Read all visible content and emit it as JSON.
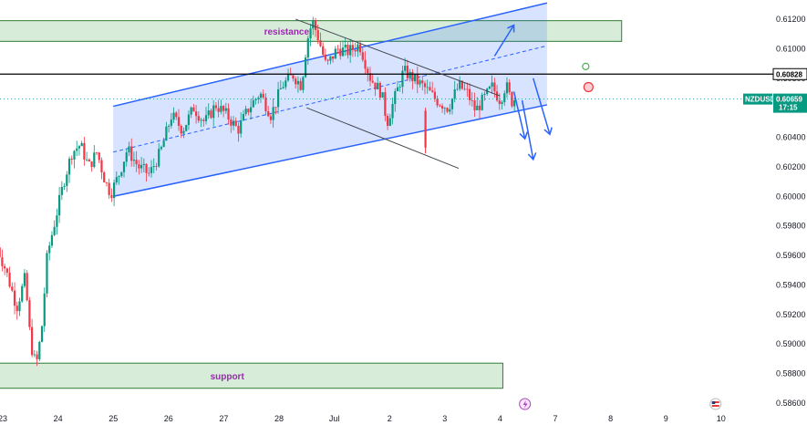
{
  "chart_data": {
    "type": "candlestick",
    "symbol": "NZDUSD",
    "last_price": "0.60659",
    "countdown": "17:15",
    "horizontal_line_price": "0.60828",
    "y_ticks": [
      "0.61200",
      "0.61000",
      "0.60800",
      "0.60600",
      "0.60400",
      "0.60200",
      "0.60000",
      "0.59800",
      "0.59600",
      "0.59400",
      "0.59200",
      "0.59000",
      "0.58800",
      "0.58600"
    ],
    "ylim": [
      0.5855,
      0.6133
    ],
    "x_ticks": [
      "23",
      "24",
      "25",
      "26",
      "27",
      "28",
      "Jul",
      "2",
      "3",
      "4",
      "7",
      "8",
      "9",
      "10"
    ],
    "x_tick_positions": [
      0,
      1,
      2,
      3,
      4,
      5,
      6,
      7,
      8,
      9,
      10,
      11,
      12,
      13
    ],
    "zones": [
      {
        "label": "resistance",
        "low": 0.6105,
        "high": 0.6119,
        "x_start": -0.1,
        "x_end": 11.2
      },
      {
        "label": "support",
        "low": 0.587,
        "high": 0.5887,
        "x_start": -0.1,
        "x_end": 9.05
      }
    ],
    "channel": {
      "lower": [
        [
          2.0,
          0.6
        ],
        [
          9.85,
          0.6062
        ]
      ],
      "upper": [
        [
          2.0,
          0.6061
        ],
        [
          9.85,
          0.6131
        ]
      ],
      "mid": [
        [
          2.0,
          0.603
        ],
        [
          9.85,
          0.6102
        ]
      ]
    },
    "trend_lines": [
      {
        "from": [
          5.3,
          0.612
        ],
        "to": [
          9.0,
          0.6068
        ]
      },
      {
        "from": [
          5.5,
          0.606
        ],
        "to": [
          8.25,
          0.6019
        ]
      }
    ],
    "projections": [
      {
        "from": [
          8.9,
          0.6095
        ],
        "to": [
          9.25,
          0.6116
        ]
      },
      {
        "from": [
          9.25,
          0.6071
        ],
        "to": [
          9.45,
          0.6039
        ]
      },
      {
        "from": [
          9.6,
          0.608
        ],
        "to": [
          9.9,
          0.6042
        ]
      },
      {
        "from": [
          9.4,
          0.6065
        ],
        "to": [
          9.6,
          0.6025
        ]
      }
    ],
    "markers": [
      {
        "type": "circle-green",
        "x": 10.55,
        "y": 0.6088
      },
      {
        "type": "circle-red",
        "x": 10.6,
        "y": 0.6074
      }
    ],
    "price_path": [
      [
        -0.1,
        0.597
      ],
      [
        0.1,
        0.595
      ],
      [
        0.3,
        0.5925
      ],
      [
        0.45,
        0.5945
      ],
      [
        0.55,
        0.59
      ],
      [
        0.65,
        0.5885
      ],
      [
        0.75,
        0.591
      ],
      [
        0.85,
        0.596
      ],
      [
        1.0,
        0.5985
      ],
      [
        1.15,
        0.601
      ],
      [
        1.3,
        0.603
      ],
      [
        1.45,
        0.6035
      ],
      [
        1.6,
        0.602
      ],
      [
        1.75,
        0.603
      ],
      [
        1.9,
        0.601
      ],
      [
        2.0,
        0.6002
      ],
      [
        2.15,
        0.6015
      ],
      [
        2.3,
        0.6032
      ],
      [
        2.5,
        0.602
      ],
      [
        2.7,
        0.6015
      ],
      [
        2.9,
        0.603
      ],
      [
        3.1,
        0.6055
      ],
      [
        3.3,
        0.6045
      ],
      [
        3.5,
        0.606
      ],
      [
        3.7,
        0.605
      ],
      [
        3.9,
        0.6062
      ],
      [
        4.1,
        0.6055
      ],
      [
        4.3,
        0.6045
      ],
      [
        4.5,
        0.606
      ],
      [
        4.7,
        0.607
      ],
      [
        4.9,
        0.6055
      ],
      [
        5.1,
        0.6075
      ],
      [
        5.3,
        0.6082
      ],
      [
        5.45,
        0.6075
      ],
      [
        5.55,
        0.6105
      ],
      [
        5.65,
        0.6119
      ],
      [
        5.75,
        0.6108
      ],
      [
        5.9,
        0.6088
      ],
      [
        6.1,
        0.61
      ],
      [
        6.3,
        0.6098
      ],
      [
        6.5,
        0.6103
      ],
      [
        6.7,
        0.608
      ],
      [
        6.9,
        0.607
      ],
      [
        7.0,
        0.605
      ],
      [
        7.1,
        0.6062
      ],
      [
        7.3,
        0.6085
      ],
      [
        7.5,
        0.6079
      ],
      [
        7.7,
        0.6073
      ],
      [
        7.9,
        0.6065
      ],
      [
        8.1,
        0.606
      ],
      [
        8.3,
        0.6075
      ],
      [
        8.45,
        0.607
      ],
      [
        8.6,
        0.6058
      ],
      [
        8.75,
        0.6066
      ],
      [
        8.9,
        0.6074
      ],
      [
        9.05,
        0.6065
      ],
      [
        9.15,
        0.6076
      ],
      [
        9.25,
        0.6064
      ],
      [
        9.3,
        0.6066
      ]
    ],
    "grid": false
  }
}
